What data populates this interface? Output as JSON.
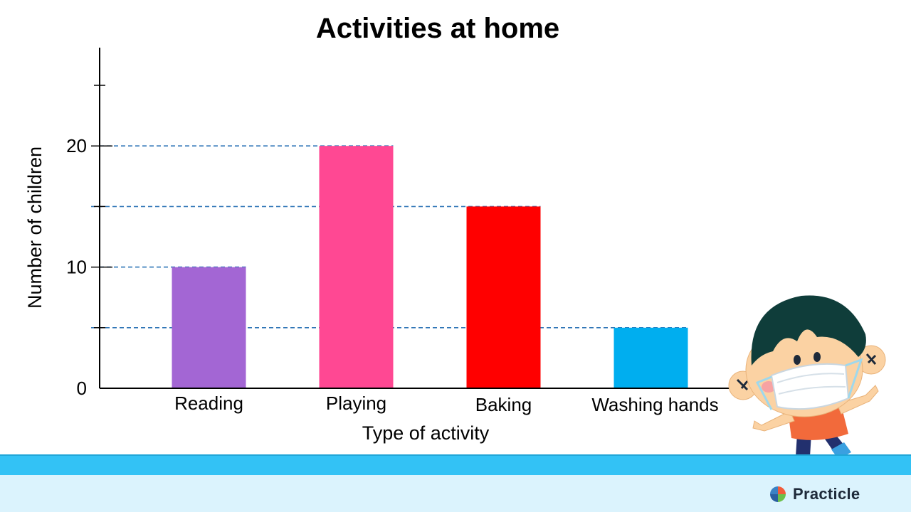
{
  "chart_data": {
    "type": "bar",
    "title": "Activities at home",
    "xlabel": "Type of activity",
    "ylabel": "Number of children",
    "categories": [
      "Reading",
      "Playing",
      "Baking",
      "Washing hands"
    ],
    "values": [
      10,
      20,
      15,
      5
    ],
    "bar_colors": [
      "#a366d4",
      "#ff4893",
      "#ff0000",
      "#00aeef"
    ],
    "ylim": [
      0,
      25
    ],
    "major_ticks": [
      0,
      10,
      20
    ],
    "minor_ticks": [
      5,
      15,
      25
    ],
    "reference_lines": [
      5,
      15,
      20,
      10
    ],
    "reference_line_color": "#2e75b6"
  },
  "brand": {
    "name": "Practicle",
    "logo_colors": [
      "#f25c3b",
      "#3b82c4",
      "#6cc04a"
    ]
  },
  "illustration": {
    "name": "kid-wearing-face-mask",
    "shirt_color": "#f26a3b",
    "hair_color": "#0f3d3a",
    "shadow_color": "#33c2f5"
  }
}
